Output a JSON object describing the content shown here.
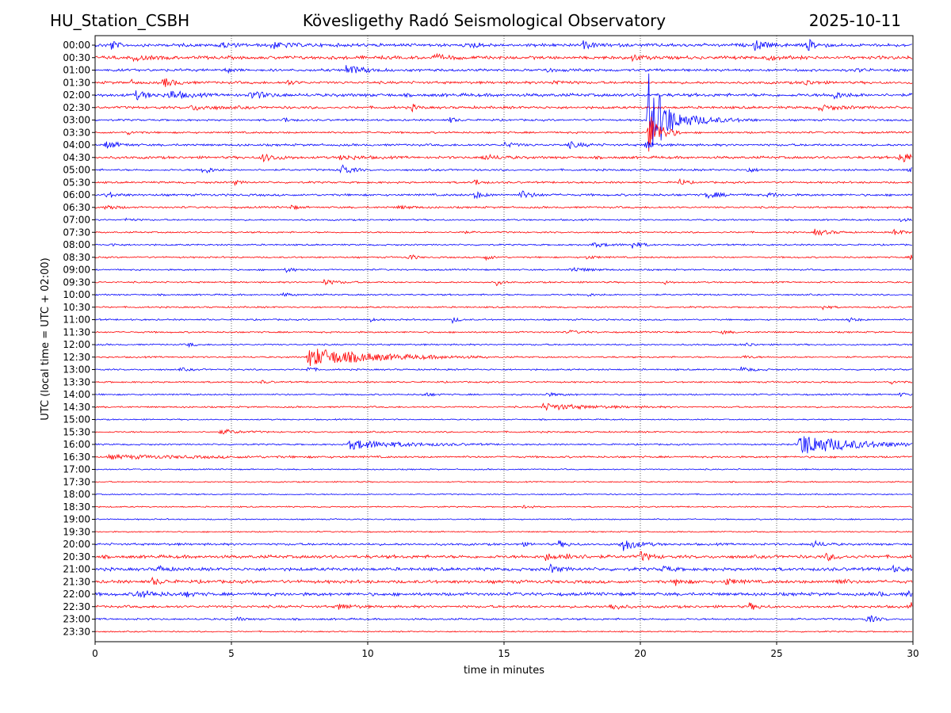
{
  "header": {
    "station": "HU_Station_CSBH",
    "observatory": "Kövesligethy Radó Seismological Observatory",
    "date": "2025-10-11"
  },
  "chart_data": {
    "type": "line",
    "title": "Kövesligethy Radó Seismological Observatory",
    "xlabel": "time in minutes",
    "ylabel": "UTC (local time = UTC + 02:00)",
    "xlim": [
      0,
      30
    ],
    "x_ticks": [
      0,
      5,
      10,
      15,
      20,
      25,
      30
    ],
    "grid": "vertical dotted lines at 5-minute ticks",
    "colors": {
      "even_hour": "#0000ff",
      "half_hour": "#ff0000"
    },
    "rows": [
      "00:00",
      "00:30",
      "01:00",
      "01:30",
      "02:00",
      "02:30",
      "03:00",
      "03:30",
      "04:00",
      "04:30",
      "05:00",
      "05:30",
      "06:00",
      "06:30",
      "07:00",
      "07:30",
      "08:00",
      "08:30",
      "09:00",
      "09:30",
      "10:00",
      "10:30",
      "11:00",
      "11:30",
      "12:00",
      "12:30",
      "13:00",
      "13:30",
      "14:00",
      "14:30",
      "15:00",
      "15:30",
      "16:00",
      "16:30",
      "17:00",
      "17:30",
      "18:00",
      "18:30",
      "19:00",
      "19:30",
      "20:00",
      "20:30",
      "21:00",
      "21:30",
      "22:00",
      "22:30",
      "23:00",
      "23:30"
    ],
    "noise": [
      2,
      2,
      1.6,
      1.6,
      2,
      1.6,
      1.2,
      1.2,
      1.4,
      1.6,
      1.2,
      1.2,
      1.4,
      1.2,
      1,
      1,
      1,
      1,
      1,
      1,
      1,
      1,
      1,
      1,
      1,
      1,
      1,
      1,
      1,
      1,
      0.8,
      1,
      1,
      1.2,
      0.8,
      0.8,
      0.8,
      0.8,
      0.8,
      0.8,
      1.4,
      2,
      2,
      2,
      2,
      1.6,
      1.2,
      0.8
    ],
    "events": [
      {
        "row": "00:00",
        "t": 0.6,
        "amp": 6,
        "dur": 0.2
      },
      {
        "row": "00:00",
        "t": 4.5,
        "amp": 4,
        "dur": 0.4
      },
      {
        "row": "00:00",
        "t": 6.4,
        "amp": 4,
        "dur": 0.6
      },
      {
        "row": "00:00",
        "t": 13.8,
        "amp": 4,
        "dur": 0.3
      },
      {
        "row": "00:00",
        "t": 17.9,
        "amp": 4,
        "dur": 0.4
      },
      {
        "row": "00:00",
        "t": 24.2,
        "amp": 6,
        "dur": 0.4
      },
      {
        "row": "00:00",
        "t": 26.1,
        "amp": 8,
        "dur": 0.3
      },
      {
        "row": "00:30",
        "t": 1.4,
        "amp": 3,
        "dur": 0.5
      },
      {
        "row": "00:30",
        "t": 12.4,
        "amp": 3,
        "dur": 0.6
      },
      {
        "row": "00:30",
        "t": 19.7,
        "amp": 4,
        "dur": 0.3
      },
      {
        "row": "00:30",
        "t": 24.5,
        "amp": 3,
        "dur": 0.5
      },
      {
        "row": "01:00",
        "t": 9.2,
        "amp": 6,
        "dur": 0.6
      },
      {
        "row": "01:00",
        "t": 4.8,
        "amp": 4,
        "dur": 0.2
      },
      {
        "row": "01:00",
        "t": 16.5,
        "amp": 3,
        "dur": 0.3
      },
      {
        "row": "01:00",
        "t": 27.9,
        "amp": 3,
        "dur": 0.2
      },
      {
        "row": "01:30",
        "t": 2.5,
        "amp": 6,
        "dur": 0.4
      },
      {
        "row": "01:30",
        "t": 1.3,
        "amp": 3,
        "dur": 0.2
      },
      {
        "row": "01:30",
        "t": 7.0,
        "amp": 3,
        "dur": 0.3
      },
      {
        "row": "01:30",
        "t": 16.8,
        "amp": 3,
        "dur": 0.4
      },
      {
        "row": "01:30",
        "t": 26.0,
        "amp": 4,
        "dur": 0.3
      },
      {
        "row": "02:00",
        "t": 1.5,
        "amp": 5,
        "dur": 0.4
      },
      {
        "row": "02:00",
        "t": 2.7,
        "amp": 6,
        "dur": 0.5
      },
      {
        "row": "02:00",
        "t": 5.7,
        "amp": 5,
        "dur": 0.5
      },
      {
        "row": "02:00",
        "t": 27.0,
        "amp": 5,
        "dur": 0.4
      },
      {
        "row": "02:30",
        "t": 3.5,
        "amp": 3,
        "dur": 0.8
      },
      {
        "row": "02:30",
        "t": 11.6,
        "amp": 4,
        "dur": 0.2
      },
      {
        "row": "02:30",
        "t": 26.5,
        "amp": 3,
        "dur": 0.8
      },
      {
        "row": "03:00",
        "t": 20.3,
        "amp": 64,
        "dur": 0.3
      },
      {
        "row": "03:00",
        "t": 20.7,
        "amp": 15,
        "dur": 1.2
      },
      {
        "row": "03:00",
        "t": 6.9,
        "amp": 4,
        "dur": 0.2
      },
      {
        "row": "03:00",
        "t": 13.0,
        "amp": 4,
        "dur": 0.2
      },
      {
        "row": "03:30",
        "t": 20.3,
        "amp": 28,
        "dur": 0.4
      },
      {
        "row": "03:30",
        "t": 1.2,
        "amp": 2,
        "dur": 0.3
      },
      {
        "row": "04:00",
        "t": 0.4,
        "amp": 5,
        "dur": 0.4
      },
      {
        "row": "04:00",
        "t": 20.2,
        "amp": 8,
        "dur": 0.2
      },
      {
        "row": "04:00",
        "t": 17.3,
        "amp": 4,
        "dur": 0.5
      },
      {
        "row": "04:00",
        "t": 15.0,
        "amp": 3,
        "dur": 0.4
      },
      {
        "row": "04:30",
        "t": 6.1,
        "amp": 5,
        "dur": 0.5
      },
      {
        "row": "04:30",
        "t": 29.5,
        "amp": 8,
        "dur": 0.4
      },
      {
        "row": "04:30",
        "t": 9.0,
        "amp": 3,
        "dur": 0.6
      },
      {
        "row": "04:30",
        "t": 14.2,
        "amp": 3,
        "dur": 0.6
      },
      {
        "row": "05:00",
        "t": 3.9,
        "amp": 6,
        "dur": 0.3
      },
      {
        "row": "05:00",
        "t": 9.0,
        "amp": 9,
        "dur": 0.3
      },
      {
        "row": "05:00",
        "t": 23.9,
        "amp": 3,
        "dur": 0.3
      },
      {
        "row": "05:00",
        "t": 29.8,
        "amp": 4,
        "dur": 0.3
      },
      {
        "row": "05:30",
        "t": 13.9,
        "amp": 5,
        "dur": 0.2
      },
      {
        "row": "05:30",
        "t": 21.4,
        "amp": 5,
        "dur": 0.2
      },
      {
        "row": "05:30",
        "t": 5.1,
        "amp": 3,
        "dur": 0.2
      },
      {
        "row": "06:00",
        "t": 0.4,
        "amp": 4,
        "dur": 0.3
      },
      {
        "row": "06:00",
        "t": 13.9,
        "amp": 5,
        "dur": 0.3
      },
      {
        "row": "06:00",
        "t": 15.6,
        "amp": 5,
        "dur": 0.4
      },
      {
        "row": "06:00",
        "t": 22.4,
        "amp": 4,
        "dur": 0.5
      },
      {
        "row": "06:00",
        "t": 24.7,
        "amp": 3,
        "dur": 0.3
      },
      {
        "row": "06:30",
        "t": 0.4,
        "amp": 4,
        "dur": 0.3
      },
      {
        "row": "06:30",
        "t": 7.2,
        "amp": 3,
        "dur": 0.2
      },
      {
        "row": "06:30",
        "t": 11.1,
        "amp": 2,
        "dur": 0.5
      },
      {
        "row": "07:00",
        "t": 1.1,
        "amp": 2,
        "dur": 0.3
      },
      {
        "row": "07:00",
        "t": 29.5,
        "amp": 2,
        "dur": 0.3
      },
      {
        "row": "07:30",
        "t": 26.4,
        "amp": 4,
        "dur": 0.5
      },
      {
        "row": "07:30",
        "t": 29.3,
        "amp": 4,
        "dur": 0.3
      },
      {
        "row": "07:30",
        "t": 13.3,
        "amp": 2,
        "dur": 0.3
      },
      {
        "row": "08:00",
        "t": 0.6,
        "amp": 2,
        "dur": 0.2
      },
      {
        "row": "08:00",
        "t": 19.7,
        "amp": 5,
        "dur": 0.3
      },
      {
        "row": "08:00",
        "t": 18.2,
        "amp": 3,
        "dur": 0.6
      },
      {
        "row": "08:30",
        "t": 11.5,
        "amp": 5,
        "dur": 0.2
      },
      {
        "row": "08:30",
        "t": 14.3,
        "amp": 3,
        "dur": 0.3
      },
      {
        "row": "08:30",
        "t": 29.9,
        "amp": 3,
        "dur": 0.2
      },
      {
        "row": "08:30",
        "t": 18.0,
        "amp": 2,
        "dur": 0.4
      },
      {
        "row": "09:00",
        "t": 7.0,
        "amp": 3,
        "dur": 0.3
      },
      {
        "row": "09:00",
        "t": 17.4,
        "amp": 3,
        "dur": 0.6
      },
      {
        "row": "09:30",
        "t": 8.4,
        "amp": 3,
        "dur": 0.5
      },
      {
        "row": "09:30",
        "t": 14.7,
        "amp": 4,
        "dur": 0.2
      },
      {
        "row": "09:30",
        "t": 20.9,
        "amp": 2,
        "dur": 0.2
      },
      {
        "row": "10:00",
        "t": 6.9,
        "amp": 2,
        "dur": 0.3
      },
      {
        "row": "10:00",
        "t": 18.0,
        "amp": 2,
        "dur": 0.3
      },
      {
        "row": "10:30",
        "t": 26.7,
        "amp": 3,
        "dur": 0.2
      },
      {
        "row": "11:00",
        "t": 13.1,
        "amp": 4,
        "dur": 0.2
      },
      {
        "row": "11:00",
        "t": 10.1,
        "amp": 2,
        "dur": 0.2
      },
      {
        "row": "11:00",
        "t": 27.6,
        "amp": 3,
        "dur": 0.3
      },
      {
        "row": "11:30",
        "t": 17.3,
        "amp": 2,
        "dur": 0.5
      },
      {
        "row": "11:30",
        "t": 23.0,
        "amp": 2,
        "dur": 0.3
      },
      {
        "row": "12:00",
        "t": 3.4,
        "amp": 3,
        "dur": 0.2
      },
      {
        "row": "12:00",
        "t": 23.9,
        "amp": 3,
        "dur": 0.2
      },
      {
        "row": "12:30",
        "t": 7.8,
        "amp": 12,
        "dur": 2.2
      },
      {
        "row": "12:30",
        "t": 23.8,
        "amp": 2,
        "dur": 0.3
      },
      {
        "row": "13:00",
        "t": 7.8,
        "amp": 4,
        "dur": 0.2
      },
      {
        "row": "13:00",
        "t": 3.1,
        "amp": 2,
        "dur": 0.3
      },
      {
        "row": "13:00",
        "t": 23.7,
        "amp": 3,
        "dur": 0.4
      },
      {
        "row": "13:30",
        "t": 6.1,
        "amp": 2,
        "dur": 0.2
      },
      {
        "row": "13:30",
        "t": 29.2,
        "amp": 2,
        "dur": 0.3
      },
      {
        "row": "14:00",
        "t": 12.0,
        "amp": 3,
        "dur": 0.3
      },
      {
        "row": "14:00",
        "t": 16.5,
        "amp": 2,
        "dur": 0.5
      },
      {
        "row": "14:00",
        "t": 29.5,
        "amp": 2,
        "dur": 0.3
      },
      {
        "row": "14:30",
        "t": 16.4,
        "amp": 4,
        "dur": 1.6
      },
      {
        "row": "15:30",
        "t": 4.6,
        "amp": 3,
        "dur": 0.6
      },
      {
        "row": "16:00",
        "t": 9.3,
        "amp": 6,
        "dur": 1.8
      },
      {
        "row": "16:00",
        "t": 25.8,
        "amp": 14,
        "dur": 1.8
      },
      {
        "row": "16:30",
        "t": 0.5,
        "amp": 2,
        "dur": 3.5
      },
      {
        "row": "18:30",
        "t": 15.7,
        "amp": 2,
        "dur": 0.3
      },
      {
        "row": "20:00",
        "t": 19.3,
        "amp": 9,
        "dur": 0.5
      },
      {
        "row": "20:00",
        "t": 15.6,
        "amp": 3,
        "dur": 0.2
      },
      {
        "row": "20:00",
        "t": 17.0,
        "amp": 4,
        "dur": 0.3
      },
      {
        "row": "20:00",
        "t": 26.3,
        "amp": 4,
        "dur": 0.4
      },
      {
        "row": "20:30",
        "t": 16.5,
        "amp": 5,
        "dur": 0.3
      },
      {
        "row": "20:30",
        "t": 20.0,
        "amp": 6,
        "dur": 0.3
      },
      {
        "row": "20:30",
        "t": 17.3,
        "amp": 4,
        "dur": 0.5
      },
      {
        "row": "20:30",
        "t": 26.8,
        "amp": 4,
        "dur": 0.4
      },
      {
        "row": "21:00",
        "t": 2.3,
        "amp": 4,
        "dur": 0.3
      },
      {
        "row": "21:00",
        "t": 16.7,
        "amp": 5,
        "dur": 0.3
      },
      {
        "row": "21:00",
        "t": 29.2,
        "amp": 4,
        "dur": 0.3
      },
      {
        "row": "21:00",
        "t": 20.8,
        "amp": 4,
        "dur": 0.3
      },
      {
        "row": "21:30",
        "t": 2.1,
        "amp": 4,
        "dur": 0.3
      },
      {
        "row": "21:30",
        "t": 21.3,
        "amp": 4,
        "dur": 0.3
      },
      {
        "row": "21:30",
        "t": 23.1,
        "amp": 4,
        "dur": 0.4
      },
      {
        "row": "21:30",
        "t": 27.1,
        "amp": 5,
        "dur": 0.3
      },
      {
        "row": "22:00",
        "t": 1.5,
        "amp": 5,
        "dur": 0.6
      },
      {
        "row": "22:00",
        "t": 3.3,
        "amp": 3,
        "dur": 0.3
      },
      {
        "row": "22:00",
        "t": 29.8,
        "amp": 4,
        "dur": 0.3
      },
      {
        "row": "22:00",
        "t": 28.7,
        "amp": 3,
        "dur": 0.2
      },
      {
        "row": "22:30",
        "t": 8.9,
        "amp": 4,
        "dur": 0.4
      },
      {
        "row": "22:30",
        "t": 18.9,
        "amp": 5,
        "dur": 0.3
      },
      {
        "row": "22:30",
        "t": 24.0,
        "amp": 4,
        "dur": 0.3
      },
      {
        "row": "22:30",
        "t": 29.9,
        "amp": 5,
        "dur": 0.2
      },
      {
        "row": "23:00",
        "t": 28.3,
        "amp": 6,
        "dur": 0.3
      },
      {
        "row": "23:00",
        "t": 5.2,
        "amp": 3,
        "dur": 0.2
      }
    ]
  }
}
